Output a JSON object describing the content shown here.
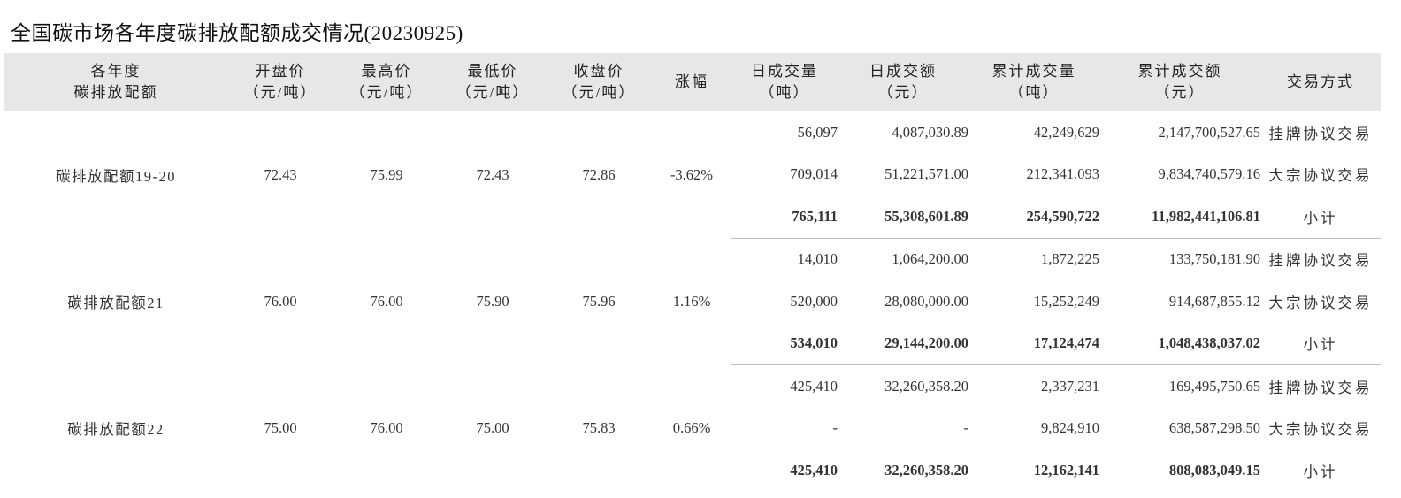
{
  "title": "全国碳市场各年度碳排放配额成交情况(20230925)",
  "headers": [
    {
      "line1": "各年度",
      "line2": "碳排放配额"
    },
    {
      "line1": "开盘价",
      "line2": "（元/吨）"
    },
    {
      "line1": "最高价",
      "line2": "（元/吨）"
    },
    {
      "line1": "最低价",
      "line2": "（元/吨）"
    },
    {
      "line1": "收盘价",
      "line2": "（元/吨）"
    },
    {
      "line1": "涨幅",
      "line2": ""
    },
    {
      "line1": "日成交量",
      "line2": "（吨）"
    },
    {
      "line1": "日成交额",
      "line2": "（元）"
    },
    {
      "line1": "累计成交量",
      "line2": "（吨）"
    },
    {
      "line1": "累计成交额",
      "line2": "（元）"
    },
    {
      "line1": "交易方式",
      "line2": ""
    }
  ],
  "groups": [
    {
      "name": "碳排放配额19-20",
      "open": "72.43",
      "high": "75.99",
      "low": "72.43",
      "close": "72.86",
      "change": "-3.62%",
      "rows": [
        {
          "daily_volume": "56,097",
          "daily_amount": "4,087,030.89",
          "cum_volume": "42,249,629",
          "cum_amount": "2,147,700,527.65",
          "method": "挂牌协议交易"
        },
        {
          "daily_volume": "709,014",
          "daily_amount": "51,221,571.00",
          "cum_volume": "212,341,093",
          "cum_amount": "9,834,740,579.16",
          "method": "大宗协议交易"
        },
        {
          "daily_volume": "765,111",
          "daily_amount": "55,308,601.89",
          "cum_volume": "254,590,722",
          "cum_amount": "11,982,441,106.81",
          "method": "小计"
        }
      ]
    },
    {
      "name": "碳排放配额21",
      "open": "76.00",
      "high": "76.00",
      "low": "75.90",
      "close": "75.96",
      "change": "1.16%",
      "rows": [
        {
          "daily_volume": "14,010",
          "daily_amount": "1,064,200.00",
          "cum_volume": "1,872,225",
          "cum_amount": "133,750,181.90",
          "method": "挂牌协议交易"
        },
        {
          "daily_volume": "520,000",
          "daily_amount": "28,080,000.00",
          "cum_volume": "15,252,249",
          "cum_amount": "914,687,855.12",
          "method": "大宗协议交易"
        },
        {
          "daily_volume": "534,010",
          "daily_amount": "29,144,200.00",
          "cum_volume": "17,124,474",
          "cum_amount": "1,048,438,037.02",
          "method": "小计"
        }
      ]
    },
    {
      "name": "碳排放配额22",
      "open": "75.00",
      "high": "76.00",
      "low": "75.00",
      "close": "75.83",
      "change": "0.66%",
      "rows": [
        {
          "daily_volume": "425,410",
          "daily_amount": "32,260,358.20",
          "cum_volume": "2,337,231",
          "cum_amount": "169,495,750.65",
          "method": "挂牌协议交易"
        },
        {
          "daily_volume": "-",
          "daily_amount": "-",
          "cum_volume": "9,824,910",
          "cum_amount": "638,587,298.50",
          "method": "大宗协议交易"
        },
        {
          "daily_volume": "425,410",
          "daily_amount": "32,260,358.20",
          "cum_volume": "12,162,141",
          "cum_amount": "808,083,049.15",
          "method": "小计"
        }
      ]
    }
  ]
}
